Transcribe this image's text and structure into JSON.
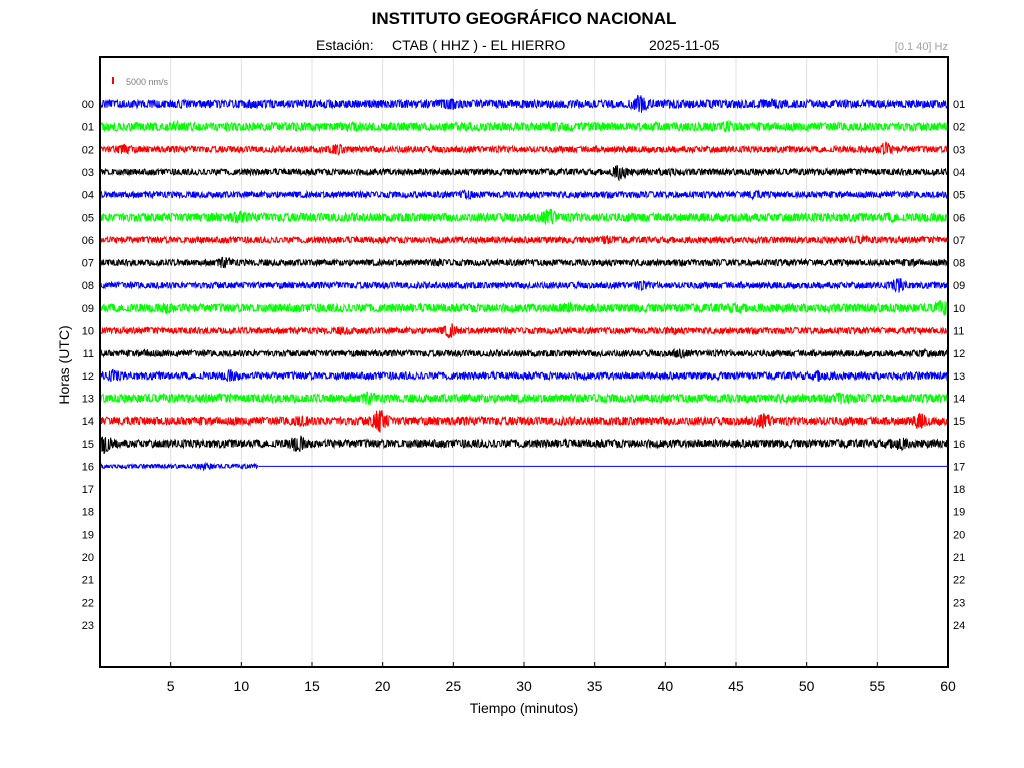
{
  "header": {
    "title": "INSTITUTO GEOGRÁFICO NACIONAL",
    "station_label": "Estación:",
    "station": "CTAB ( HHZ ) - EL HIERRO",
    "date": "2025-11-05",
    "filter": "[0.1 40] Hz"
  },
  "chart_data": {
    "type": "line",
    "title": "INSTITUTO GEOGRÁFICO NACIONAL",
    "xlabel": "Tiempo (minutos)",
    "ylabel": "Horas (UTC)",
    "xlim": [
      0,
      60
    ],
    "x_ticks": [
      5,
      10,
      15,
      20,
      25,
      30,
      35,
      40,
      45,
      50,
      55,
      60
    ],
    "grid": true,
    "scale_bar": {
      "label": "5000 nm/s",
      "color": "#ff0000"
    },
    "left_hour_labels": [
      "00",
      "01",
      "02",
      "03",
      "04",
      "05",
      "06",
      "07",
      "08",
      "09",
      "10",
      "11",
      "12",
      "13",
      "14",
      "15",
      "16",
      "17",
      "18",
      "19",
      "20",
      "21",
      "22",
      "23"
    ],
    "right_hour_labels": [
      "01",
      "02",
      "03",
      "04",
      "05",
      "06",
      "07",
      "08",
      "09",
      "10",
      "11",
      "12",
      "13",
      "14",
      "15",
      "16",
      "17",
      "18",
      "19",
      "20",
      "21",
      "22",
      "23",
      "24"
    ],
    "trace_colors": [
      "#0000ff",
      "#00ff00",
      "#ff0000",
      "#000000"
    ],
    "series": [
      {
        "hour": "00",
        "color": "#0000ff",
        "end_minute": 60,
        "amplitude": 4,
        "bursts": [
          [
            24.8,
            1.5
          ],
          [
            38.2,
            2.5
          ],
          [
            47.5,
            1.3
          ]
        ]
      },
      {
        "hour": "01",
        "color": "#00ff00",
        "end_minute": 60,
        "amplitude": 4,
        "bursts": [
          [
            5.5,
            1.4
          ],
          [
            18.0,
            1.4
          ],
          [
            32.0,
            1.3
          ],
          [
            44.5,
            1.4
          ]
        ]
      },
      {
        "hour": "02",
        "color": "#ff0000",
        "end_minute": 60,
        "amplitude": 3,
        "bursts": [
          [
            1.7,
            2.0
          ],
          [
            16.8,
            1.8
          ],
          [
            55.5,
            2.5
          ]
        ]
      },
      {
        "hour": "03",
        "color": "#000000",
        "end_minute": 60,
        "amplitude": 3,
        "bursts": [
          [
            36.8,
            2.8
          ],
          [
            40.3,
            1.5
          ]
        ]
      },
      {
        "hour": "04",
        "color": "#0000ff",
        "end_minute": 60,
        "amplitude": 3,
        "bursts": [
          [
            26.0,
            1.6
          ],
          [
            46.3,
            1.6
          ]
        ]
      },
      {
        "hour": "05",
        "color": "#00ff00",
        "end_minute": 60,
        "amplitude": 4,
        "bursts": [
          [
            9.8,
            1.6
          ],
          [
            31.8,
            2.2
          ],
          [
            56.0,
            1.3
          ]
        ]
      },
      {
        "hour": "06",
        "color": "#ff0000",
        "end_minute": 60,
        "amplitude": 3,
        "bursts": [
          [
            35.8,
            1.6
          ],
          [
            53.8,
            1.5
          ]
        ]
      },
      {
        "hour": "07",
        "color": "#000000",
        "end_minute": 60,
        "amplitude": 3,
        "bursts": [
          [
            8.8,
            2.0
          ],
          [
            24.0,
            1.3
          ],
          [
            57.5,
            1.3
          ]
        ]
      },
      {
        "hour": "08",
        "color": "#0000ff",
        "end_minute": 60,
        "amplitude": 3,
        "bursts": [
          [
            38.3,
            1.7
          ],
          [
            56.5,
            2.5
          ]
        ]
      },
      {
        "hour": "09",
        "color": "#00ff00",
        "end_minute": 60,
        "amplitude": 4,
        "bursts": [
          [
            4.8,
            1.5
          ],
          [
            33.0,
            1.4
          ],
          [
            45.0,
            1.4
          ],
          [
            59.6,
            2.0
          ]
        ]
      },
      {
        "hour": "10",
        "color": "#ff0000",
        "end_minute": 60,
        "amplitude": 3,
        "bursts": [
          [
            17.3,
            1.5
          ],
          [
            24.8,
            2.5
          ],
          [
            40.5,
            1.3
          ]
        ]
      },
      {
        "hour": "11",
        "color": "#000000",
        "end_minute": 60,
        "amplitude": 3,
        "bursts": [
          [
            3.5,
            1.4
          ],
          [
            41.0,
            1.7
          ],
          [
            58.2,
            1.5
          ]
        ]
      },
      {
        "hour": "12",
        "color": "#0000ff",
        "end_minute": 60,
        "amplitude": 4,
        "bursts": [
          [
            1.0,
            1.7
          ],
          [
            9.2,
            1.7
          ],
          [
            51.0,
            1.6
          ]
        ]
      },
      {
        "hour": "13",
        "color": "#00ff00",
        "end_minute": 60,
        "amplitude": 4,
        "bursts": [
          [
            19.0,
            1.7
          ],
          [
            52.5,
            1.6
          ]
        ]
      },
      {
        "hour": "14",
        "color": "#ff0000",
        "end_minute": 60,
        "amplitude": 4,
        "bursts": [
          [
            14.2,
            1.5
          ],
          [
            19.8,
            3.3
          ],
          [
            47.0,
            2.0
          ],
          [
            58.0,
            2.0
          ]
        ]
      },
      {
        "hour": "15",
        "color": "#000000",
        "end_minute": 60,
        "amplitude": 4,
        "bursts": [
          [
            0.3,
            2.5
          ],
          [
            14.0,
            2.3
          ],
          [
            56.5,
            1.9
          ]
        ]
      },
      {
        "hour": "16",
        "color": "#0000ff",
        "end_minute": 11.2,
        "amplitude": 2,
        "bursts": [
          [
            7.5,
            1.9
          ]
        ]
      }
    ]
  }
}
